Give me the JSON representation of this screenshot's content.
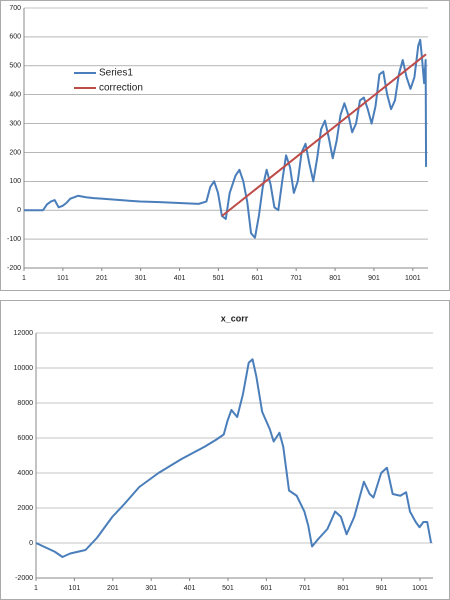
{
  "chart_data": [
    {
      "type": "line",
      "xlim": [
        1,
        1040
      ],
      "xticks": [
        1,
        101,
        201,
        301,
        401,
        501,
        601,
        701,
        801,
        901,
        1001
      ],
      "ylim": [
        -200,
        700
      ],
      "yticks": [
        -200,
        -100,
        0,
        100,
        200,
        300,
        400,
        500,
        600,
        700
      ],
      "grid": true,
      "legend": "upper left",
      "series": [
        {
          "name": "Series1",
          "color": "#4a7ebb",
          "x": [
            1,
            50,
            60,
            70,
            80,
            90,
            100,
            110,
            120,
            140,
            160,
            180,
            200,
            250,
            300,
            350,
            400,
            450,
            470,
            480,
            490,
            500,
            510,
            520,
            530,
            545,
            555,
            565,
            575,
            585,
            595,
            605,
            615,
            625,
            635,
            645,
            655,
            665,
            675,
            685,
            695,
            705,
            715,
            725,
            735,
            745,
            755,
            765,
            775,
            785,
            795,
            805,
            815,
            825,
            835,
            845,
            855,
            865,
            875,
            885,
            895,
            905,
            915,
            925,
            935,
            945,
            955,
            965,
            975,
            985,
            995,
            1005,
            1015,
            1020,
            1025,
            1030,
            1034,
            1035
          ],
          "values": [
            0,
            0,
            20,
            30,
            35,
            10,
            15,
            25,
            40,
            50,
            45,
            42,
            40,
            35,
            30,
            28,
            25,
            22,
            30,
            80,
            100,
            60,
            -20,
            -30,
            60,
            120,
            140,
            100,
            30,
            -80,
            -95,
            -20,
            80,
            140,
            90,
            10,
            0,
            100,
            190,
            150,
            60,
            100,
            200,
            230,
            160,
            100,
            180,
            280,
            310,
            250,
            180,
            240,
            330,
            370,
            330,
            270,
            300,
            380,
            390,
            350,
            300,
            360,
            470,
            480,
            400,
            350,
            380,
            470,
            520,
            460,
            420,
            460,
            570,
            590,
            520,
            440,
            520,
            150
          ]
        },
        {
          "name": "correction",
          "color": "#be4b48",
          "x": [
            510,
            1035
          ],
          "values": [
            -20,
            540
          ]
        }
      ]
    },
    {
      "type": "line",
      "title": "x_corr",
      "xlim": [
        1,
        1035
      ],
      "xticks": [
        1,
        101,
        201,
        301,
        401,
        501,
        601,
        701,
        801,
        901,
        1001
      ],
      "ylim": [
        -2000,
        12000
      ],
      "yticks": [
        -2000,
        0,
        2000,
        4000,
        6000,
        8000,
        10000,
        12000
      ],
      "grid": true,
      "series": [
        {
          "color": "#4a7ebb",
          "x": [
            1,
            50,
            70,
            90,
            110,
            130,
            160,
            200,
            230,
            270,
            320,
            380,
            440,
            470,
            490,
            500,
            510,
            525,
            540,
            555,
            565,
            575,
            590,
            610,
            620,
            635,
            645,
            660,
            680,
            700,
            710,
            720,
            735,
            760,
            780,
            795,
            810,
            830,
            855,
            870,
            880,
            900,
            915,
            930,
            950,
            965,
            975,
            990,
            1000,
            1010,
            1020,
            1030
          ],
          "values": [
            0,
            -500,
            -800,
            -600,
            -500,
            -400,
            300,
            1500,
            2200,
            3200,
            4000,
            4800,
            5500,
            5900,
            6200,
            7000,
            7600,
            7200,
            8500,
            10300,
            10500,
            9500,
            7500,
            6500,
            5800,
            6300,
            5500,
            3000,
            2700,
            1800,
            1000,
            -200,
            200,
            800,
            1800,
            1500,
            500,
            1500,
            3500,
            2800,
            2600,
            4000,
            4300,
            2800,
            2700,
            2900,
            1800,
            1200,
            900,
            1200,
            1200,
            0
          ]
        }
      ]
    }
  ]
}
